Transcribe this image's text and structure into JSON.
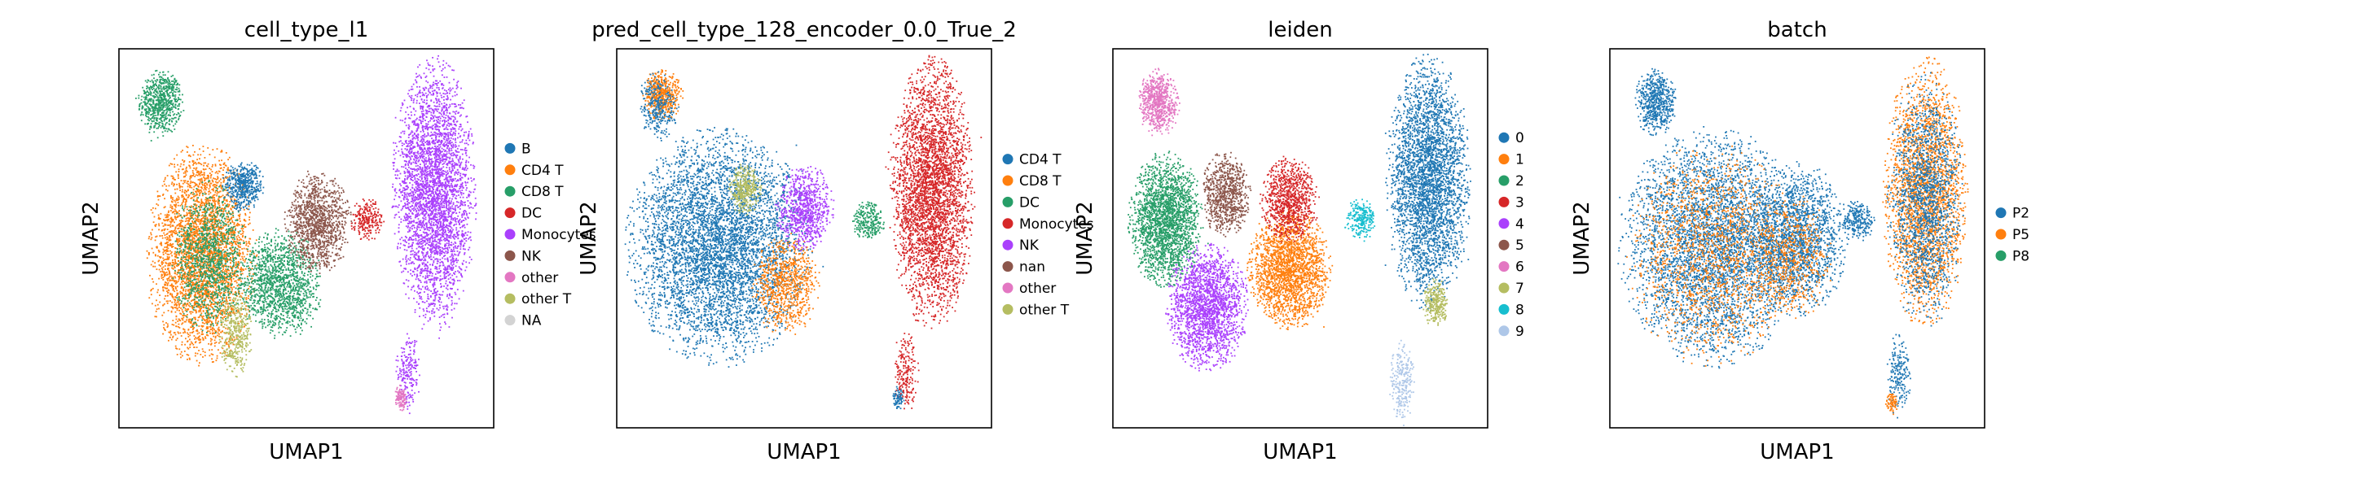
{
  "chart_data": [
    {
      "type": "scatter",
      "title": "cell_type_l1",
      "xlabel": "UMAP1",
      "ylabel": "UMAP2",
      "grid": false,
      "legend_position": "right",
      "legend": [
        {
          "label": "B",
          "color": "#1f77b4"
        },
        {
          "label": "CD4 T",
          "color": "#ff7f0e"
        },
        {
          "label": "CD8 T",
          "color": "#279e68"
        },
        {
          "label": "DC",
          "color": "#d62728"
        },
        {
          "label": "Monocytes",
          "color": "#aa40fc"
        },
        {
          "label": "NK",
          "color": "#8c564b"
        },
        {
          "label": "other",
          "color": "#e377c2"
        },
        {
          "label": "other T",
          "color": "#b5bd61"
        },
        {
          "label": "NA",
          "color": "#d3d3d3"
        }
      ],
      "clusters": [
        {
          "category": "CD8 T",
          "cx": 0.11,
          "cy": 0.86,
          "rx": 0.055,
          "ry": 0.08,
          "n": 700
        },
        {
          "category": "CD4 T",
          "cx": 0.22,
          "cy": 0.46,
          "rx": 0.13,
          "ry": 0.26,
          "n": 3600
        },
        {
          "category": "CD8 T",
          "cx": 0.24,
          "cy": 0.45,
          "rx": 0.09,
          "ry": 0.18,
          "n": 1100
        },
        {
          "category": "B",
          "cx": 0.33,
          "cy": 0.64,
          "rx": 0.05,
          "ry": 0.06,
          "n": 500
        },
        {
          "category": "CD8 T",
          "cx": 0.43,
          "cy": 0.38,
          "rx": 0.1,
          "ry": 0.13,
          "n": 1400
        },
        {
          "category": "NK",
          "cx": 0.53,
          "cy": 0.54,
          "rx": 0.08,
          "ry": 0.12,
          "n": 1200
        },
        {
          "category": "other T",
          "cx": 0.31,
          "cy": 0.25,
          "rx": 0.04,
          "ry": 0.1,
          "n": 400
        },
        {
          "category": "DC",
          "cx": 0.66,
          "cy": 0.55,
          "rx": 0.04,
          "ry": 0.05,
          "n": 250
        },
        {
          "category": "Monocytes",
          "cx": 0.84,
          "cy": 0.62,
          "rx": 0.1,
          "ry": 0.32,
          "n": 3600
        },
        {
          "category": "Monocytes",
          "cx": 0.77,
          "cy": 0.15,
          "rx": 0.03,
          "ry": 0.1,
          "n": 200
        },
        {
          "category": "other",
          "cx": 0.75,
          "cy": 0.08,
          "rx": 0.015,
          "ry": 0.03,
          "n": 120
        }
      ]
    },
    {
      "type": "scatter",
      "title": "pred_cell_type_128_encoder_0.0_True_2",
      "xlabel": "UMAP1",
      "ylabel": "UMAP2",
      "grid": false,
      "legend_position": "right",
      "legend": [
        {
          "label": "CD4 T",
          "color": "#1f77b4"
        },
        {
          "label": "CD8 T",
          "color": "#ff7f0e"
        },
        {
          "label": "DC",
          "color": "#279e68"
        },
        {
          "label": "Monocytes",
          "color": "#d62728"
        },
        {
          "label": "NK",
          "color": "#aa40fc"
        },
        {
          "label": "nan",
          "color": "#8c564b"
        },
        {
          "label": "other",
          "color": "#e377c2"
        },
        {
          "label": "other T",
          "color": "#b5bd61"
        }
      ],
      "clusters": [
        {
          "category": "CD8 T",
          "cx": 0.12,
          "cy": 0.88,
          "rx": 0.05,
          "ry": 0.06,
          "n": 500
        },
        {
          "category": "CD4 T",
          "cx": 0.11,
          "cy": 0.85,
          "rx": 0.05,
          "ry": 0.08,
          "n": 300
        },
        {
          "category": "CD4 T",
          "cx": 0.27,
          "cy": 0.48,
          "rx": 0.22,
          "ry": 0.28,
          "n": 5200
        },
        {
          "category": "CD8 T",
          "cx": 0.45,
          "cy": 0.38,
          "rx": 0.08,
          "ry": 0.12,
          "n": 800
        },
        {
          "category": "NK",
          "cx": 0.5,
          "cy": 0.58,
          "rx": 0.07,
          "ry": 0.1,
          "n": 800
        },
        {
          "category": "other T",
          "cx": 0.34,
          "cy": 0.63,
          "rx": 0.04,
          "ry": 0.06,
          "n": 350
        },
        {
          "category": "DC",
          "cx": 0.67,
          "cy": 0.55,
          "rx": 0.04,
          "ry": 0.05,
          "n": 250
        },
        {
          "category": "Monocytes",
          "cx": 0.84,
          "cy": 0.62,
          "rx": 0.1,
          "ry": 0.32,
          "n": 3600
        },
        {
          "category": "Monocytes",
          "cx": 0.77,
          "cy": 0.15,
          "rx": 0.03,
          "ry": 0.1,
          "n": 200
        },
        {
          "category": "CD4 T",
          "cx": 0.75,
          "cy": 0.08,
          "rx": 0.015,
          "ry": 0.03,
          "n": 80
        }
      ]
    },
    {
      "type": "scatter",
      "title": "leiden",
      "xlabel": "UMAP1",
      "ylabel": "UMAP2",
      "grid": false,
      "legend_position": "right",
      "legend": [
        {
          "label": "0",
          "color": "#1f77b4"
        },
        {
          "label": "1",
          "color": "#ff7f0e"
        },
        {
          "label": "2",
          "color": "#279e68"
        },
        {
          "label": "3",
          "color": "#d62728"
        },
        {
          "label": "4",
          "color": "#aa40fc"
        },
        {
          "label": "5",
          "color": "#8c564b"
        },
        {
          "label": "6",
          "color": "#e377c2"
        },
        {
          "label": "7",
          "color": "#b5bd61"
        },
        {
          "label": "8",
          "color": "#17becf"
        },
        {
          "label": "9",
          "color": "#aec7e8"
        }
      ],
      "clusters": [
        {
          "category": "6",
          "cx": 0.12,
          "cy": 0.86,
          "rx": 0.05,
          "ry": 0.08,
          "n": 700
        },
        {
          "category": "2",
          "cx": 0.14,
          "cy": 0.55,
          "rx": 0.09,
          "ry": 0.16,
          "n": 2200
        },
        {
          "category": "4",
          "cx": 0.25,
          "cy": 0.32,
          "rx": 0.1,
          "ry": 0.15,
          "n": 2000
        },
        {
          "category": "5",
          "cx": 0.3,
          "cy": 0.62,
          "rx": 0.06,
          "ry": 0.1,
          "n": 800
        },
        {
          "category": "1",
          "cx": 0.47,
          "cy": 0.42,
          "rx": 0.1,
          "ry": 0.14,
          "n": 2100
        },
        {
          "category": "3",
          "cx": 0.47,
          "cy": 0.6,
          "rx": 0.07,
          "ry": 0.1,
          "n": 900
        },
        {
          "category": "8",
          "cx": 0.66,
          "cy": 0.55,
          "rx": 0.04,
          "ry": 0.05,
          "n": 250
        },
        {
          "category": "0",
          "cx": 0.84,
          "cy": 0.65,
          "rx": 0.1,
          "ry": 0.3,
          "n": 3400
        },
        {
          "category": "7",
          "cx": 0.86,
          "cy": 0.33,
          "rx": 0.03,
          "ry": 0.06,
          "n": 300
        },
        {
          "category": "9",
          "cx": 0.77,
          "cy": 0.12,
          "rx": 0.03,
          "ry": 0.1,
          "n": 250
        }
      ]
    },
    {
      "type": "scatter",
      "title": "batch",
      "xlabel": "UMAP1",
      "ylabel": "UMAP2",
      "grid": false,
      "legend_position": "right",
      "legend": [
        {
          "label": "P2",
          "color": "#1f77b4"
        },
        {
          "label": "P5",
          "color": "#ff7f0e"
        },
        {
          "label": "P8",
          "color": "#279e68"
        }
      ],
      "clusters": [
        {
          "category": "P2",
          "cx": 0.12,
          "cy": 0.86,
          "rx": 0.05,
          "ry": 0.08,
          "n": 600
        },
        {
          "category": "P2",
          "cx": 0.27,
          "cy": 0.48,
          "rx": 0.22,
          "ry": 0.28,
          "n": 4200
        },
        {
          "category": "P5",
          "cx": 0.27,
          "cy": 0.46,
          "rx": 0.2,
          "ry": 0.26,
          "n": 1500
        },
        {
          "category": "P2",
          "cx": 0.5,
          "cy": 0.5,
          "rx": 0.12,
          "ry": 0.18,
          "n": 1800
        },
        {
          "category": "P5",
          "cx": 0.48,
          "cy": 0.45,
          "rx": 0.1,
          "ry": 0.15,
          "n": 600
        },
        {
          "category": "P2",
          "cx": 0.66,
          "cy": 0.55,
          "rx": 0.04,
          "ry": 0.05,
          "n": 250
        },
        {
          "category": "P5",
          "cx": 0.84,
          "cy": 0.62,
          "rx": 0.1,
          "ry": 0.32,
          "n": 2600
        },
        {
          "category": "P2",
          "cx": 0.84,
          "cy": 0.6,
          "rx": 0.09,
          "ry": 0.3,
          "n": 1600
        },
        {
          "category": "P2",
          "cx": 0.77,
          "cy": 0.14,
          "rx": 0.03,
          "ry": 0.1,
          "n": 200
        },
        {
          "category": "P5",
          "cx": 0.75,
          "cy": 0.07,
          "rx": 0.015,
          "ry": 0.03,
          "n": 80
        }
      ]
    }
  ]
}
